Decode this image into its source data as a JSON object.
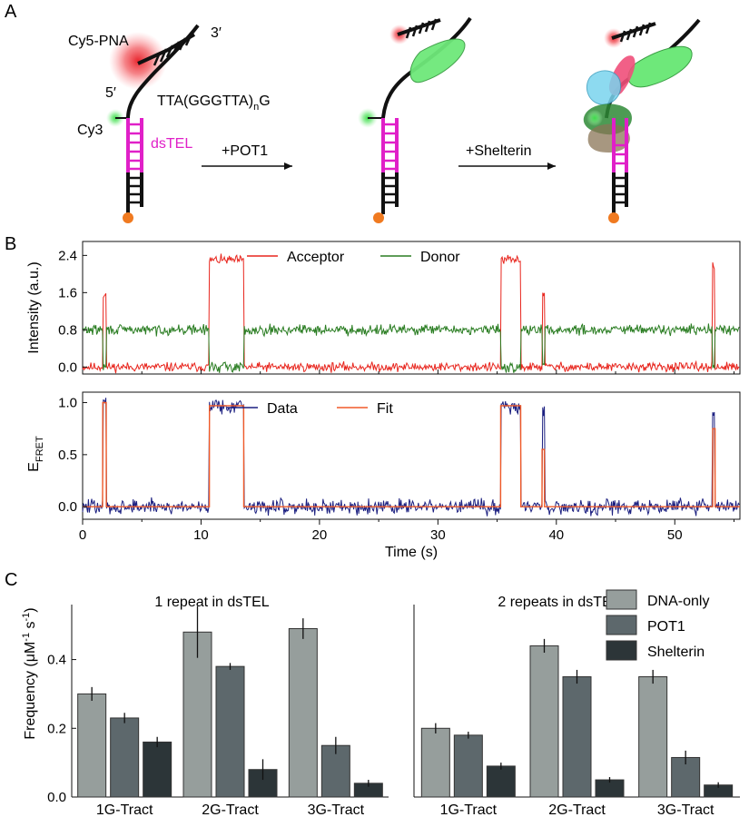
{
  "panelA": {
    "label": "A",
    "cy5_label": "Cy5-PNA",
    "three_prime": "3′",
    "five_prime": "5′",
    "overhang_pre": "TTA(GGGTTA)",
    "overhang_sub": "n",
    "overhang_post": "G",
    "cy3_label": "Cy3",
    "dstel_label": "dsTEL",
    "step1": "+POT1",
    "step2": "+Shelterin",
    "colors": {
      "cy5": "#e8262e",
      "cy3": "#2ecc40",
      "dstel": "#e020c8",
      "dna": "#111111",
      "bead": "#f07a20"
    }
  },
  "panelB": {
    "label": "B",
    "xlabel": "Time (s)",
    "intensity": {
      "ylabel": "Intensity (a.u.)",
      "yticks": [
        "0.0",
        "0.8",
        "1.6",
        "2.4"
      ],
      "legend": [
        "Acceptor",
        "Donor"
      ],
      "colors": [
        "#e8261e",
        "#2a7d22"
      ]
    },
    "fret": {
      "ylabel_main": "E",
      "ylabel_sub": "FRET",
      "yticks": [
        "0.0",
        "0.5",
        "1.0"
      ],
      "legend": [
        "Data",
        "Fit"
      ],
      "colors": [
        "#1b1f80",
        "#f05a28"
      ]
    },
    "xticks": [
      "0",
      "10",
      "20",
      "30",
      "40",
      "50"
    ]
  },
  "panelC": {
    "label": "C",
    "ylabel": "Frequency (μM",
    "ylabel_sup1": "-1",
    "ylabel_mid": " s",
    "ylabel_sup2": "-1",
    "ylabel_end": ")",
    "legend": [
      "DNA-only",
      "POT1",
      "Shelterin"
    ],
    "colors": [
      "#969e9c",
      "#5d686c",
      "#2c3538"
    ]
  },
  "chart_data": [
    {
      "type": "line",
      "title": "",
      "xlabel": "Time (s)",
      "ylabel": "Intensity (a.u.)",
      "xlim": [
        0,
        55.5
      ],
      "ylim": [
        -0.15,
        2.7
      ],
      "legend": "top",
      "series": [
        {
          "name": "Acceptor",
          "baseline": 0.0,
          "noise": 0.08,
          "events": [
            {
              "start": 1.7,
              "end": 2.0,
              "level": 1.55
            },
            {
              "start": 10.7,
              "end": 13.6,
              "level": 2.3
            },
            {
              "start": 35.3,
              "end": 37.0,
              "level": 2.3
            },
            {
              "start": 38.8,
              "end": 39.0,
              "level": 1.6
            },
            {
              "start": 53.2,
              "end": 53.4,
              "level": 2.2
            }
          ]
        },
        {
          "name": "Donor",
          "baseline": 0.8,
          "noise": 0.09,
          "events": [
            {
              "start": 1.7,
              "end": 2.0,
              "level": 0.0
            },
            {
              "start": 10.7,
              "end": 13.6,
              "level": 0.0
            },
            {
              "start": 35.3,
              "end": 37.0,
              "level": 0.0
            },
            {
              "start": 38.8,
              "end": 39.0,
              "level": 0.05
            },
            {
              "start": 53.2,
              "end": 53.4,
              "level": 0.0
            }
          ]
        }
      ]
    },
    {
      "type": "line",
      "title": "",
      "xlabel": "Time (s)",
      "ylabel": "EFRET",
      "xlim": [
        0,
        55.5
      ],
      "ylim": [
        -0.12,
        1.1
      ],
      "legend": "top",
      "series": [
        {
          "name": "Data",
          "baseline": 0.0,
          "noise": 0.06,
          "events": [
            {
              "start": 1.7,
              "end": 2.0,
              "level": 1.0
            },
            {
              "start": 10.7,
              "end": 13.6,
              "level": 0.97
            },
            {
              "start": 35.3,
              "end": 37.0,
              "level": 0.97
            },
            {
              "start": 38.8,
              "end": 39.0,
              "level": 0.95
            },
            {
              "start": 53.2,
              "end": 53.4,
              "level": 0.95
            }
          ]
        },
        {
          "name": "Fit",
          "baseline": 0.0,
          "noise": 0,
          "events": [
            {
              "start": 1.7,
              "end": 2.0,
              "level": 1.0
            },
            {
              "start": 10.7,
              "end": 13.6,
              "level": 0.97
            },
            {
              "start": 35.3,
              "end": 37.0,
              "level": 0.97
            },
            {
              "start": 38.8,
              "end": 39.0,
              "level": 0.55
            },
            {
              "start": 53.2,
              "end": 53.4,
              "level": 0.75
            }
          ]
        }
      ]
    },
    {
      "type": "bar",
      "title": "1 repeat in dsTEL",
      "xlabel": "",
      "ylabel": "Frequency (μM-1 s-1)",
      "ylim": [
        0,
        0.56
      ],
      "yticks": [
        "0.0",
        "0.2",
        "0.4"
      ],
      "categories": [
        "1G-Tract",
        "2G-Tract",
        "3G-Tract"
      ],
      "series": [
        {
          "name": "DNA-only",
          "values": [
            0.3,
            0.48,
            0.49
          ],
          "errors": [
            0.02,
            0.075,
            0.03
          ]
        },
        {
          "name": "POT1",
          "values": [
            0.23,
            0.38,
            0.15
          ],
          "errors": [
            0.015,
            0.01,
            0.025
          ]
        },
        {
          "name": "Shelterin",
          "values": [
            0.16,
            0.08,
            0.04
          ],
          "errors": [
            0.015,
            0.03,
            0.01
          ]
        }
      ]
    },
    {
      "type": "bar",
      "title": "2 repeats in dsTEL",
      "xlabel": "",
      "ylabel": "",
      "ylim": [
        0,
        0.56
      ],
      "categories": [
        "1G-Tract",
        "2G-Tract",
        "3G-Tract"
      ],
      "series": [
        {
          "name": "DNA-only",
          "values": [
            0.2,
            0.44,
            0.35
          ],
          "errors": [
            0.015,
            0.02,
            0.02
          ]
        },
        {
          "name": "POT1",
          "values": [
            0.18,
            0.35,
            0.115
          ],
          "errors": [
            0.01,
            0.02,
            0.02
          ]
        },
        {
          "name": "Shelterin",
          "values": [
            0.09,
            0.05,
            0.035
          ],
          "errors": [
            0.01,
            0.008,
            0.008
          ]
        }
      ]
    }
  ]
}
